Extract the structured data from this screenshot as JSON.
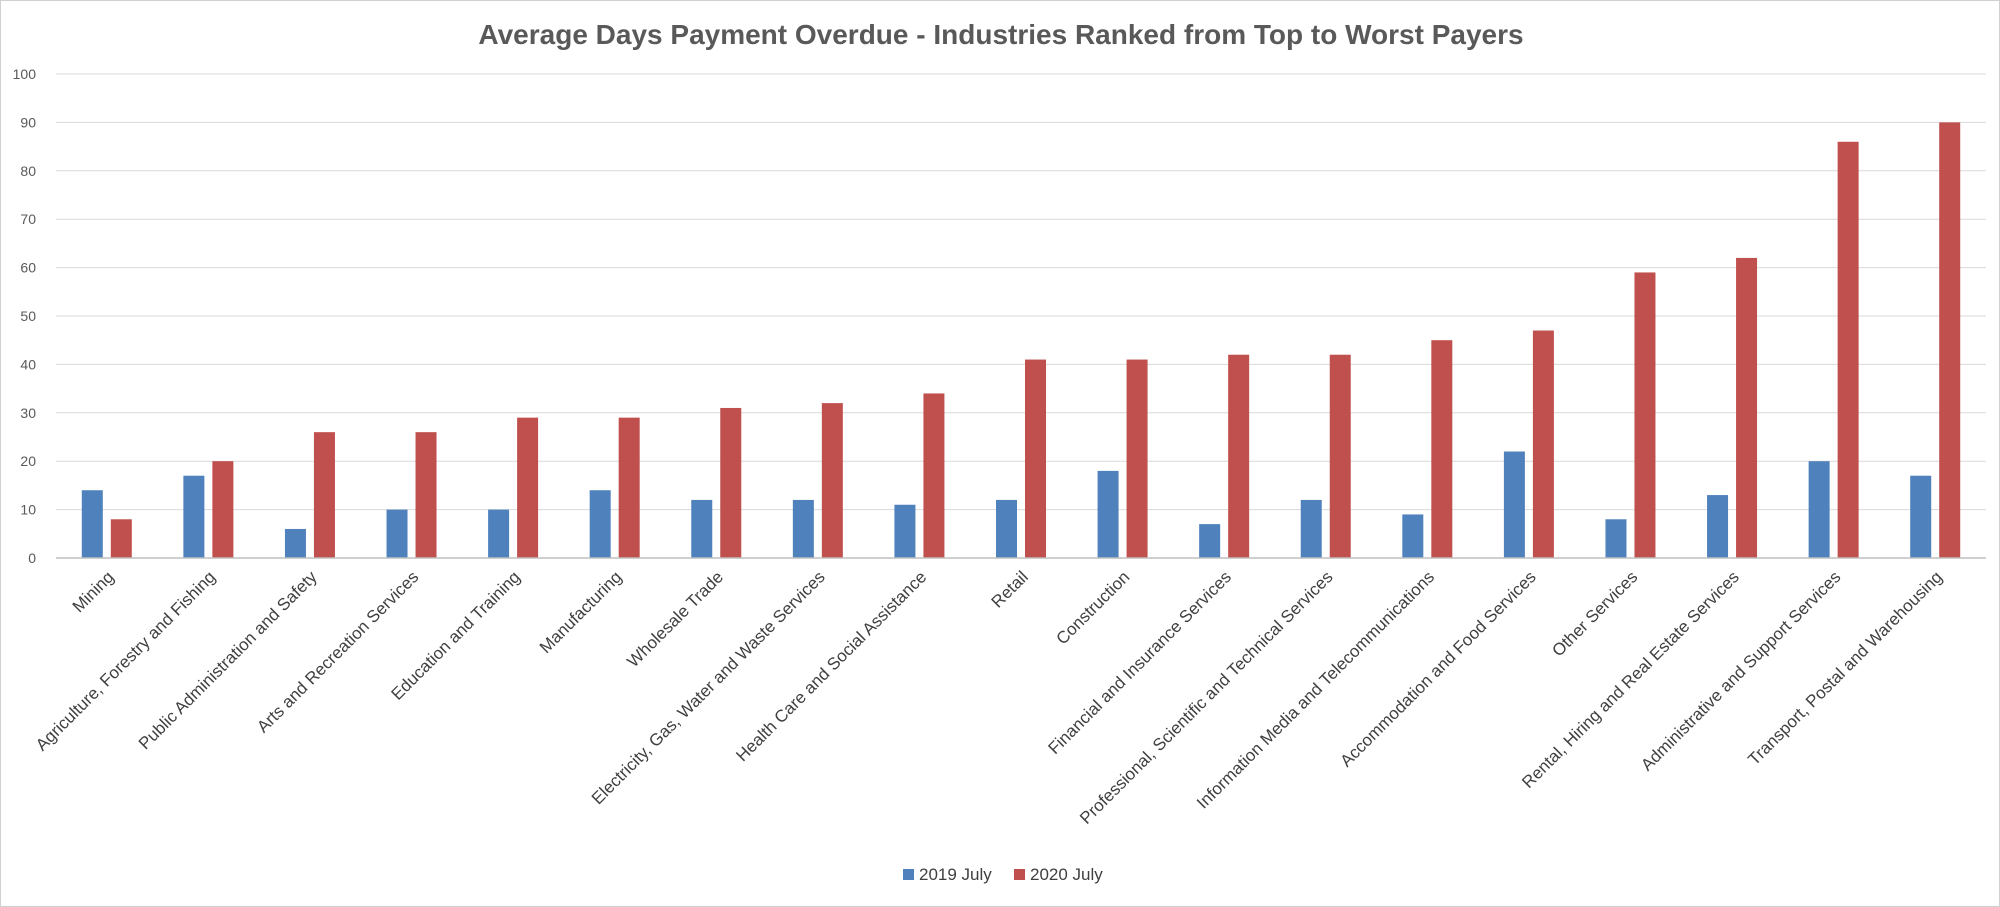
{
  "chart_data": {
    "type": "bar",
    "title": "Average Days Payment Overdue - Industries Ranked from Top to Worst Payers",
    "xlabel": "",
    "ylabel": "",
    "ylim": [
      0,
      100
    ],
    "yticks": [
      0,
      10,
      20,
      30,
      40,
      50,
      60,
      70,
      80,
      90,
      100
    ],
    "grid": true,
    "legend_position": "bottom",
    "categories": [
      "Mining",
      "Agriculture, Forestry and Fishing",
      "Public Administration and Safety",
      "Arts and Recreation Services",
      "Education and Training",
      "Manufacturing",
      "Wholesale Trade",
      "Electricity, Gas, Water and Waste Services",
      "Health Care and Social Assistance",
      "Retail",
      "Construction",
      "Financial and Insurance Services",
      "Professional, Scientific and Technical Services",
      "Information Media and Telecommunications",
      "Accommodation and Food Services",
      "Other Services",
      "Rental, Hiring and Real Estate Services",
      "Administrative and Support Services",
      "Transport, Postal and Warehousing"
    ],
    "series": [
      {
        "name": "2019 July",
        "color": "#4f81bd",
        "values": [
          14,
          17,
          6,
          10,
          10,
          14,
          12,
          12,
          11,
          12,
          18,
          7,
          12,
          9,
          22,
          8,
          13,
          20,
          17
        ]
      },
      {
        "name": "2020 July",
        "color": "#c0504d",
        "values": [
          8,
          20,
          26,
          26,
          29,
          29,
          31,
          32,
          34,
          41,
          41,
          42,
          42,
          45,
          47,
          59,
          62,
          86,
          90
        ]
      }
    ]
  }
}
